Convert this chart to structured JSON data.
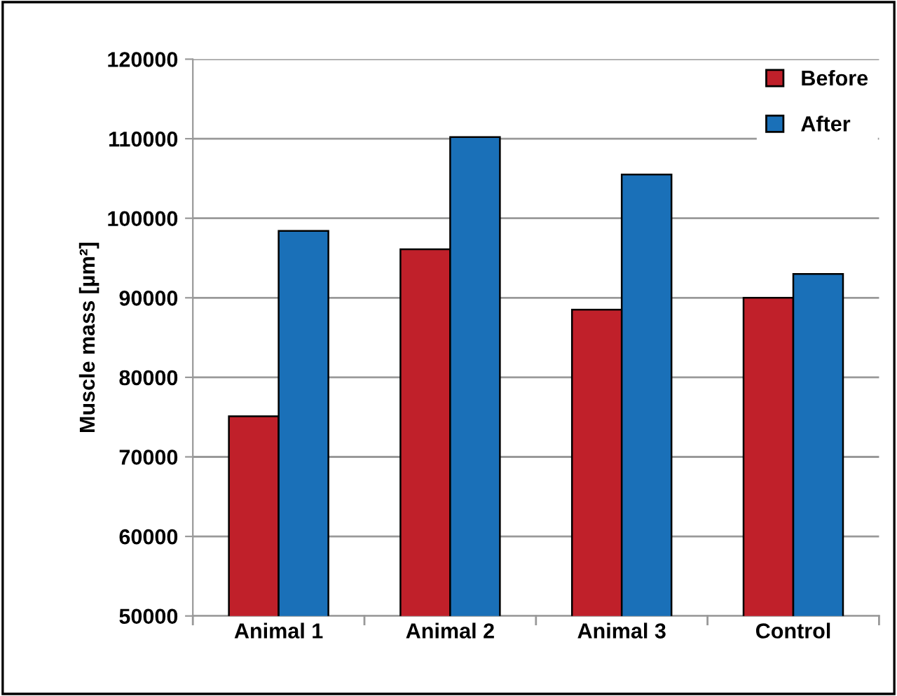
{
  "chart_data": {
    "type": "bar",
    "ylabel": "Muscle mass [µm²]",
    "categories": [
      "Animal 1",
      "Animal 2",
      "Animal 3",
      "Control"
    ],
    "series": [
      {
        "name": "Before",
        "color": "#c0202a",
        "values": [
          75100,
          96100,
          88500,
          90000
        ]
      },
      {
        "name": "After",
        "color": "#1a70b8",
        "values": [
          98400,
          110200,
          105500,
          93000
        ]
      }
    ],
    "ylim": [
      50000,
      120000
    ],
    "yticks": [
      50000,
      60000,
      70000,
      80000,
      90000,
      100000,
      110000,
      120000
    ],
    "grid": "y",
    "legend": "top right"
  }
}
